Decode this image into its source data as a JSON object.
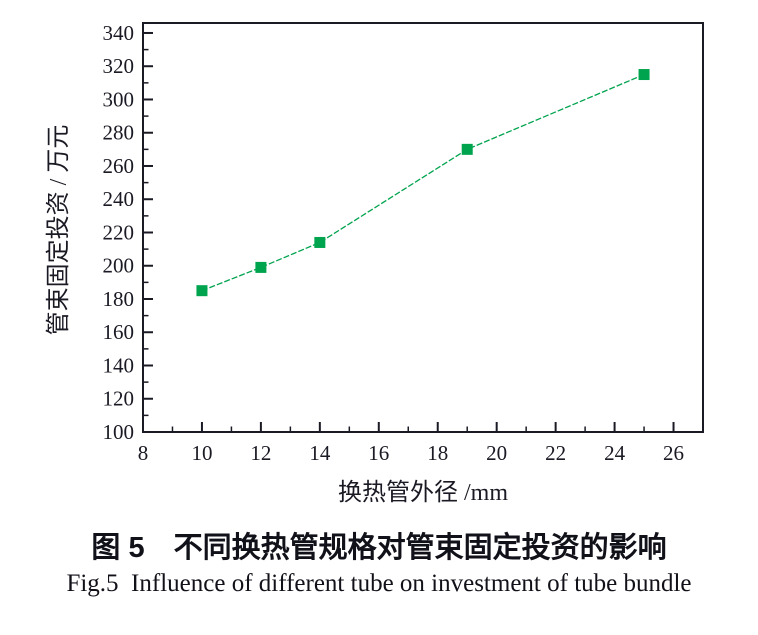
{
  "figure": {
    "caption_zh": "图 5　不同换热管规格对管束固定投资的影响",
    "caption_en": "Fig.5  Influence of different tube on investment of tube bundle"
  },
  "chart_data": {
    "type": "line",
    "series": [
      {
        "name": "管束固定投资",
        "x": [
          10,
          12,
          14,
          19,
          25
        ],
        "y": [
          185,
          199,
          214,
          270,
          315
        ]
      }
    ],
    "xlabel": "换热管外径 /mm",
    "ylabel": "管束固定投资 / 万元",
    "xlim": [
      8,
      27
    ],
    "ylim": [
      100,
      346
    ],
    "xticks": [
      8,
      10,
      12,
      14,
      16,
      18,
      20,
      22,
      24,
      26
    ],
    "yticks": [
      100,
      120,
      140,
      160,
      180,
      200,
      220,
      240,
      260,
      280,
      300,
      320,
      340
    ],
    "x_minor_step": 1,
    "y_minor_step": 10,
    "grid": false,
    "legend": "none",
    "marker": "square",
    "marker_size": 11,
    "line_color": "#00a34e",
    "axis_color": "#1a1a24",
    "text_color": "#1a1a24"
  }
}
